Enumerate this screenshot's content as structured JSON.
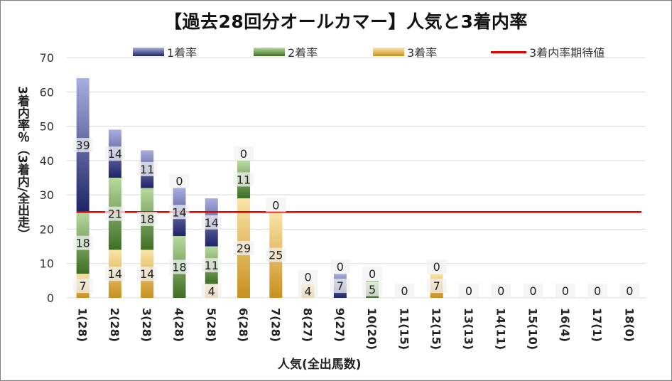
{
  "colors": {
    "s1": "#3b4590",
    "s2": "#5f8f3e",
    "s3": "#d9a93a",
    "line": "#e00000",
    "grid": "#d9d9d9"
  },
  "chart_data": {
    "type": "bar",
    "title": "【過去28回分オールカマー】人気と3着内率",
    "xlabel": "人気(全出馬数)",
    "ylabel": "3着内率％（3着内/全出走）",
    "ylim": [
      0,
      70
    ],
    "yticks": [
      0,
      10,
      20,
      30,
      40,
      50,
      60,
      70
    ],
    "grid": true,
    "legend_position": "top",
    "categories": [
      "1(28)",
      "2(28)",
      "3(28)",
      "4(28)",
      "5(28)",
      "6(28)",
      "7(28)",
      "8(27)",
      "9(27)",
      "10(20)",
      "11(15)",
      "12(15)",
      "13(13)",
      "14(11)",
      "15(10)",
      "16(4)",
      "17(1)",
      "18(0)"
    ],
    "series": [
      {
        "name": "1着率",
        "values": [
          39,
          14,
          11,
          14,
          14,
          0,
          0,
          0,
          7,
          0,
          0,
          0,
          0,
          0,
          0,
          0,
          0,
          0
        ]
      },
      {
        "name": "2着率",
        "values": [
          18,
          21,
          18,
          18,
          11,
          11,
          0,
          0,
          0,
          5,
          0,
          0,
          0,
          0,
          0,
          0,
          0,
          0
        ]
      },
      {
        "name": "3着率",
        "values": [
          7,
          14,
          14,
          0,
          4,
          29,
          25,
          4,
          0,
          0,
          0,
          7,
          0,
          0,
          0,
          0,
          0,
          0
        ]
      }
    ],
    "data_labels": [
      [
        "39",
        "18",
        "7"
      ],
      [
        "14",
        "21",
        "14"
      ],
      [
        "11",
        "18",
        "14"
      ],
      [
        "14",
        "18",
        "0"
      ],
      [
        "14",
        "11",
        "4"
      ],
      [
        "0",
        "11",
        "29"
      ],
      [
        "0",
        "",
        "25"
      ],
      [
        "0",
        "",
        "4"
      ],
      [
        "7",
        "0",
        ""
      ],
      [
        "0",
        "5",
        ""
      ],
      [
        "0",
        "",
        ""
      ],
      [
        "0",
        "",
        "7"
      ],
      [
        "0",
        "",
        ""
      ],
      [
        "0",
        "",
        ""
      ],
      [
        "0",
        "",
        ""
      ],
      [
        "0",
        "",
        ""
      ],
      [
        "0",
        "",
        ""
      ],
      [
        "0",
        "",
        ""
      ]
    ],
    "reference_line": {
      "name": "3着内率期待値",
      "value": 25
    }
  }
}
